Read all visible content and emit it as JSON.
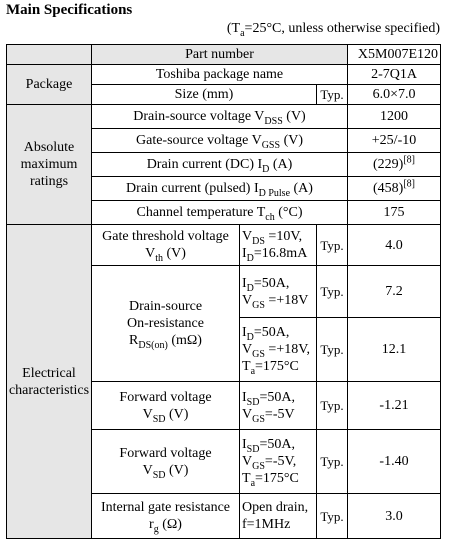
{
  "title": "Main Specifications",
  "condition": {
    "pre": "(T",
    "sub": "a",
    "post": "=25°C, unless otherwise specified)"
  },
  "part_number": {
    "label": "Part number",
    "value": "X5M007E120"
  },
  "package": {
    "group": "Package",
    "toshiba_name": {
      "label": "Toshiba package name",
      "value": "2-7Q1A"
    },
    "size": {
      "label": "Size (mm)",
      "typ": "Typ.",
      "value": "6.0×7.0"
    }
  },
  "absolute": {
    "group": [
      "Absolute",
      "maximum",
      "ratings"
    ],
    "vdss": {
      "pre": "Drain-source voltage V",
      "sub": "DSS",
      "post": " (V)",
      "value": "1200"
    },
    "vgss": {
      "pre": "Gate-source voltage V",
      "sub": "GSS",
      "post": " (V)",
      "value": "+25/-10"
    },
    "id": {
      "pre": "Drain current (DC) I",
      "sub": "D",
      "post": " (A)",
      "value": "(229)",
      "note": "[8]"
    },
    "idp": {
      "pre": "Drain current (pulsed) I",
      "sub": "D Pulse",
      "post": " (A)",
      "value": "(458)",
      "note": "[8]"
    },
    "tch": {
      "pre": "Channel temperature T",
      "sub": "ch",
      "post": " (°C)",
      "value": "175"
    }
  },
  "electrical": {
    "group": [
      "Electrical",
      "characteristics"
    ],
    "typ": "Typ.",
    "vth": {
      "line1": "Gate threshold voltage",
      "sym": "V",
      "sym_sub": "th",
      "unit": " (V)",
      "cond": [
        {
          "pre": "V",
          "sub": "DS",
          "post": " =10V,"
        },
        {
          "pre": "I",
          "sub": "D",
          "post": "=16.8mA"
        }
      ],
      "value": "4.0"
    },
    "rds": {
      "line1": "Drain-source",
      "line2": "On-resistance",
      "sym": "R",
      "sym_sub": "DS(on)",
      "unit": " (mΩ)",
      "rows": [
        {
          "cond": [
            {
              "pre": "I",
              "sub": "D",
              "post": "=50A,"
            },
            {
              "pre": "V",
              "sub": "GS",
              "post": " =+18V"
            }
          ],
          "value": "7.2"
        },
        {
          "cond": [
            {
              "pre": "I",
              "sub": "D",
              "post": "=50A,"
            },
            {
              "pre": "V",
              "sub": "GS",
              "post": " =+18V,"
            },
            {
              "pre": "T",
              "sub": "a",
              "post": "=175°C"
            }
          ],
          "value": "12.1"
        }
      ]
    },
    "vsd1": {
      "line1": "Forward voltage",
      "sym": "V",
      "sym_sub": "SD",
      "unit": " (V)",
      "cond": [
        {
          "pre": "I",
          "sub": "SD",
          "post": "=50A,"
        },
        {
          "pre": "V",
          "sub": "GS",
          "post": "=-5V"
        }
      ],
      "value": "-1.21"
    },
    "vsd2": {
      "line1": "Forward voltage",
      "sym": "V",
      "sym_sub": "SD",
      "unit": " (V)",
      "cond": [
        {
          "pre": "I",
          "sub": "SD",
          "post": "=50A,"
        },
        {
          "pre": "V",
          "sub": "GS",
          "post": "=-5V,"
        },
        {
          "pre": "T",
          "sub": "a",
          "post": "=175°C"
        }
      ],
      "value": "-1.40"
    },
    "rg": {
      "line1": "Internal gate resistance",
      "sym": "r",
      "sym_sub": "g",
      "unit": " (Ω)",
      "cond": [
        {
          "pre": "Open drain,",
          "sub": "",
          "post": ""
        },
        {
          "pre": "f=1MHz",
          "sub": "",
          "post": ""
        }
      ],
      "value": "3.0"
    }
  }
}
